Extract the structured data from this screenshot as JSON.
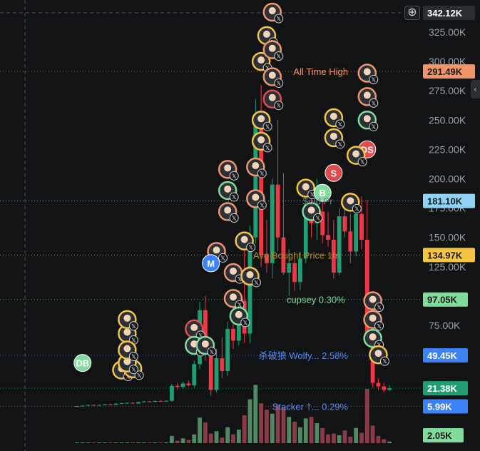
{
  "chart_data": {
    "type": "candlestick",
    "y_scale": "linear",
    "ylim": [
      0,
      345000
    ],
    "y_ticks": [
      "325.00K",
      "300.00K",
      "275.00K",
      "250.00K",
      "225.00K",
      "200.00K",
      "175.00K",
      "150.00K",
      "125.00K",
      "100.00K",
      "75.00K"
    ],
    "y_tick_values": [
      325000,
      300000,
      275000,
      250000,
      225000,
      200000,
      175000,
      150000,
      125000,
      100000,
      75000
    ],
    "grid": false,
    "crosshair_price": "342.12K",
    "price_tags": [
      {
        "label": "291.49K",
        "value": 291490,
        "bg": "#f0956a",
        "fg": "#1a1a1a"
      },
      {
        "label": "181.10K",
        "value": 181100,
        "bg": "#8fd3f5",
        "fg": "#1a1a1a"
      },
      {
        "label": "134.97K",
        "value": 134970,
        "bg": "#f5c542",
        "fg": "#1a1a1a"
      },
      {
        "label": "97.05K",
        "value": 97050,
        "bg": "#7fdc9a",
        "fg": "#1a1a1a"
      },
      {
        "label": "49.45K",
        "value": 49450,
        "bg": "#3b82f6",
        "fg": "#ffffff"
      },
      {
        "label": "21.38K",
        "value": 21380,
        "bg": "#1f9e72",
        "fg": "#ffffff"
      },
      {
        "label": "5.99K",
        "value": 5990,
        "bg": "#3b82f6",
        "fg": "#ffffff"
      }
    ],
    "volume_label": "2.05K",
    "volume_tag_color": "#7fdc9a",
    "annotations": [
      {
        "text": "All Time High",
        "value": 291490,
        "color": "#f0956a"
      },
      {
        "text": "Avg Bought Price 1m",
        "value": 134970,
        "color": "#b08a2a"
      },
      {
        "text": "Sold Pr",
        "value": 181100,
        "color": "#6b7f8c"
      },
      {
        "text": "cupsey 0.30%",
        "value": 97050,
        "color": "#7fdc9a"
      },
      {
        "text": "杀破狼 Wolfy... 2.58%",
        "value": 49450,
        "color": "#5b8def"
      },
      {
        "text": "Stacker †... 0.29%",
        "value": 5990,
        "color": "#5b8def"
      }
    ],
    "candles": [
      {
        "o": 6000,
        "h": 6500,
        "l": 5500,
        "c": 6200
      },
      {
        "o": 6200,
        "h": 6800,
        "l": 5900,
        "c": 6600
      },
      {
        "o": 6600,
        "h": 7500,
        "l": 6000,
        "c": 7200
      },
      {
        "o": 7200,
        "h": 7600,
        "l": 6500,
        "c": 6900
      },
      {
        "o": 6900,
        "h": 7400,
        "l": 6500,
        "c": 7200
      },
      {
        "o": 7200,
        "h": 8000,
        "l": 6800,
        "c": 7800
      },
      {
        "o": 7800,
        "h": 8200,
        "l": 7000,
        "c": 7400
      },
      {
        "o": 7400,
        "h": 8500,
        "l": 7100,
        "c": 8300
      },
      {
        "o": 8300,
        "h": 9000,
        "l": 7800,
        "c": 8800
      },
      {
        "o": 8800,
        "h": 9200,
        "l": 8200,
        "c": 9000
      },
      {
        "o": 9000,
        "h": 9500,
        "l": 8000,
        "c": 8400
      },
      {
        "o": 8400,
        "h": 10000,
        "l": 8200,
        "c": 9600
      },
      {
        "o": 9600,
        "h": 10500,
        "l": 9000,
        "c": 10200
      },
      {
        "o": 10200,
        "h": 10800,
        "l": 9500,
        "c": 9800
      },
      {
        "o": 9800,
        "h": 10800,
        "l": 9600,
        "c": 10600
      },
      {
        "o": 10600,
        "h": 11200,
        "l": 10000,
        "c": 10300
      },
      {
        "o": 10300,
        "h": 11000,
        "l": 9800,
        "c": 10700
      },
      {
        "o": 10700,
        "h": 25000,
        "l": 10000,
        "c": 23500
      },
      {
        "o": 23500,
        "h": 26000,
        "l": 20000,
        "c": 22500
      },
      {
        "o": 22500,
        "h": 27000,
        "l": 21000,
        "c": 25500
      },
      {
        "o": 25500,
        "h": 28000,
        "l": 23000,
        "c": 24000
      },
      {
        "o": 24000,
        "h": 45000,
        "l": 22000,
        "c": 42000
      },
      {
        "o": 42000,
        "h": 95000,
        "l": 38000,
        "c": 88000
      },
      {
        "o": 88000,
        "h": 100000,
        "l": 45000,
        "c": 52000
      },
      {
        "o": 52000,
        "h": 58000,
        "l": 15000,
        "c": 20000
      },
      {
        "o": 20000,
        "h": 55000,
        "l": 18000,
        "c": 47000
      },
      {
        "o": 47000,
        "h": 65000,
        "l": 30000,
        "c": 36000
      },
      {
        "o": 36000,
        "h": 78000,
        "l": 32000,
        "c": 72000
      },
      {
        "o": 72000,
        "h": 100000,
        "l": 55000,
        "c": 62000
      },
      {
        "o": 62000,
        "h": 105000,
        "l": 58000,
        "c": 96000
      },
      {
        "o": 96000,
        "h": 140000,
        "l": 60000,
        "c": 68000
      },
      {
        "o": 68000,
        "h": 160000,
        "l": 60000,
        "c": 150000
      },
      {
        "o": 150000,
        "h": 268000,
        "l": 145000,
        "c": 255000
      },
      {
        "o": 255000,
        "h": 280000,
        "l": 125000,
        "c": 135000
      },
      {
        "o": 135000,
        "h": 165000,
        "l": 120000,
        "c": 128000
      },
      {
        "o": 128000,
        "h": 200000,
        "l": 115000,
        "c": 195000
      },
      {
        "o": 195000,
        "h": 250000,
        "l": 138000,
        "c": 150000
      },
      {
        "o": 150000,
        "h": 205000,
        "l": 118000,
        "c": 120000
      },
      {
        "o": 120000,
        "h": 140000,
        "l": 100000,
        "c": 128000
      },
      {
        "o": 128000,
        "h": 132000,
        "l": 104000,
        "c": 112000
      },
      {
        "o": 112000,
        "h": 138000,
        "l": 105000,
        "c": 132000
      },
      {
        "o": 132000,
        "h": 185000,
        "l": 128000,
        "c": 178000
      },
      {
        "o": 178000,
        "h": 198000,
        "l": 150000,
        "c": 162000
      },
      {
        "o": 162000,
        "h": 200000,
        "l": 148000,
        "c": 172000
      },
      {
        "o": 172000,
        "h": 186000,
        "l": 145000,
        "c": 152000
      },
      {
        "o": 152000,
        "h": 172000,
        "l": 142000,
        "c": 148000
      },
      {
        "o": 148000,
        "h": 165000,
        "l": 115000,
        "c": 120000
      },
      {
        "o": 120000,
        "h": 175000,
        "l": 118000,
        "c": 168000
      },
      {
        "o": 168000,
        "h": 178000,
        "l": 150000,
        "c": 155000
      },
      {
        "o": 155000,
        "h": 170000,
        "l": 128000,
        "c": 138000
      },
      {
        "o": 138000,
        "h": 178000,
        "l": 134000,
        "c": 170000
      },
      {
        "o": 170000,
        "h": 185000,
        "l": 140000,
        "c": 148000
      },
      {
        "o": 148000,
        "h": 182000,
        "l": 58000,
        "c": 62000
      },
      {
        "o": 62000,
        "h": 70000,
        "l": 22000,
        "c": 26000
      },
      {
        "o": 26000,
        "h": 30000,
        "l": 20000,
        "c": 23000
      },
      {
        "o": 23000,
        "h": 26000,
        "l": 18000,
        "c": 20000
      },
      {
        "o": 20000,
        "h": 24000,
        "l": 19000,
        "c": 21380
      }
    ],
    "volumes": [
      0.005,
      0.005,
      0.005,
      0.005,
      0.006,
      0.006,
      0.006,
      0.006,
      0.007,
      0.007,
      0.007,
      0.008,
      0.008,
      0.008,
      0.009,
      0.009,
      0.01,
      0.09,
      0.03,
      0.06,
      0.04,
      0.11,
      0.32,
      0.26,
      0.12,
      0.15,
      0.07,
      0.2,
      0.11,
      0.17,
      0.35,
      0.55,
      0.73,
      0.5,
      0.42,
      0.37,
      0.48,
      0.45,
      0.33,
      0.27,
      0.2,
      0.31,
      0.33,
      0.25,
      0.19,
      0.11,
      0.12,
      0.1,
      0.16,
      0.08,
      0.19,
      0.13,
      0.68,
      0.22,
      0.09,
      0.05,
      0.02
    ],
    "markers": [
      {
        "i": 8,
        "value": 37000,
        "color": "#f5c542",
        "kind": "avatar"
      },
      {
        "i": 10,
        "value": 38000,
        "color": "#f5c542",
        "kind": "avatar"
      },
      {
        "i": 9,
        "value": 43000,
        "color": "#f5c542",
        "kind": "avatar"
      },
      {
        "i": 9,
        "value": 68000,
        "color": "#f5c542",
        "kind": "avatar"
      },
      {
        "i": 9,
        "value": 80000,
        "color": "#f5c542",
        "kind": "avatar"
      },
      {
        "i": 9,
        "value": 54000,
        "color": "#f5c542",
        "kind": "avatar"
      },
      {
        "i": 1,
        "value": 43000,
        "color": "#7fdc9a",
        "kind": "text",
        "text": "DB"
      },
      {
        "i": 21,
        "value": 72000,
        "color": "#e14b4b",
        "kind": "avatar"
      },
      {
        "i": 21,
        "value": 58000,
        "color": "#7fdc9a",
        "kind": "avatar"
      },
      {
        "i": 23,
        "value": 58000,
        "color": "#7fdc9a",
        "kind": "avatar"
      },
      {
        "i": 25,
        "value": 138000,
        "color": "#f0956a",
        "kind": "avatar"
      },
      {
        "i": 24,
        "value": 128000,
        "color": "#3b82f6",
        "kind": "text",
        "text": "M"
      },
      {
        "i": 27,
        "value": 208000,
        "color": "#f0956a",
        "kind": "avatar"
      },
      {
        "i": 27,
        "value": 190000,
        "color": "#7fdc9a",
        "kind": "avatar"
      },
      {
        "i": 27,
        "value": 172000,
        "color": "#f0956a",
        "kind": "avatar"
      },
      {
        "i": 28,
        "value": 120000,
        "color": "#f0956a",
        "kind": "avatar"
      },
      {
        "i": 28,
        "value": 98000,
        "color": "#f0956a",
        "kind": "avatar"
      },
      {
        "i": 29,
        "value": 83000,
        "color": "#7fdc9a",
        "kind": "avatar"
      },
      {
        "i": 30,
        "value": 147000,
        "color": "#f5c542",
        "kind": "avatar"
      },
      {
        "i": 31,
        "value": 117000,
        "color": "#f5c542",
        "kind": "avatar"
      },
      {
        "i": 32,
        "value": 210000,
        "color": "#f0956a",
        "kind": "avatar"
      },
      {
        "i": 32,
        "value": 183000,
        "color": "#f0956a",
        "kind": "avatar"
      },
      {
        "i": 33,
        "value": 300000,
        "color": "#f5c542",
        "kind": "avatar"
      },
      {
        "i": 34,
        "value": 322000,
        "color": "#f5c542",
        "kind": "avatar"
      },
      {
        "i": 35,
        "value": 342000,
        "color": "#f0956a",
        "kind": "avatar"
      },
      {
        "i": 35,
        "value": 310000,
        "color": "#f0956a",
        "kind": "avatar"
      },
      {
        "i": 35,
        "value": 287000,
        "color": "#f0956a",
        "kind": "avatar"
      },
      {
        "i": 35,
        "value": 268000,
        "color": "#e14b4b",
        "kind": "avatar"
      },
      {
        "i": 33,
        "value": 250000,
        "color": "#f5c542",
        "kind": "avatar"
      },
      {
        "i": 33,
        "value": 232000,
        "color": "#f5c542",
        "kind": "avatar"
      },
      {
        "i": 41,
        "value": 192000,
        "color": "#f5c542",
        "kind": "avatar"
      },
      {
        "i": 42,
        "value": 172000,
        "color": "#7fdc9a",
        "kind": "avatar"
      },
      {
        "i": 44,
        "value": 188000,
        "color": "#7fdc9a",
        "kind": "text",
        "text": "B"
      },
      {
        "i": 46,
        "value": 205000,
        "color": "#e14b4b",
        "kind": "text",
        "text": "S"
      },
      {
        "i": 46,
        "value": 235000,
        "color": "#f5c542",
        "kind": "avatar"
      },
      {
        "i": 46,
        "value": 252000,
        "color": "#f5c542",
        "kind": "avatar"
      },
      {
        "i": 52,
        "value": 225000,
        "color": "#e14b4b",
        "kind": "text",
        "text": "DS"
      },
      {
        "i": 52,
        "value": 290000,
        "color": "#f0956a",
        "kind": "avatar"
      },
      {
        "i": 52,
        "value": 270000,
        "color": "#f0956a",
        "kind": "avatar"
      },
      {
        "i": 52,
        "value": 250000,
        "color": "#7fdc9a",
        "kind": "avatar"
      },
      {
        "i": 53,
        "value": 96000,
        "color": "#f0956a",
        "kind": "avatar"
      },
      {
        "i": 53,
        "value": 80000,
        "color": "#f0956a",
        "kind": "avatar"
      },
      {
        "i": 53,
        "value": 64000,
        "color": "#7fdc9a",
        "kind": "avatar"
      },
      {
        "i": 54,
        "value": 50000,
        "color": "#f5c542",
        "kind": "avatar"
      },
      {
        "i": 50,
        "value": 220000,
        "color": "#f5c542",
        "kind": "avatar"
      },
      {
        "i": 49,
        "value": 180000,
        "color": "#f5c542",
        "kind": "avatar"
      }
    ]
  },
  "colors": {
    "background": "#111315",
    "up": "#1f9e72",
    "down": "#f23645",
    "up_volume": "#4f8a62",
    "down_volume": "#8a3b47"
  },
  "ui": {
    "zoom_icon": "plus-circle-icon",
    "side_tab_icon": "chevron-left-icon",
    "zoom_glyph": "⊕",
    "side_glyph": "‹"
  }
}
